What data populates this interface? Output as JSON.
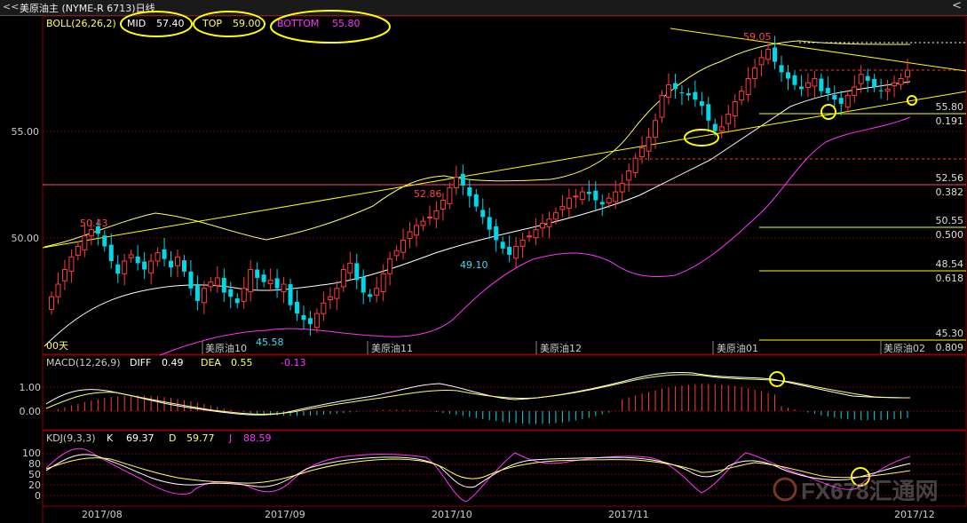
{
  "title": "美原油主 (NYME-R 6713)日线",
  "nav_left": "<<",
  "nav_right": "<",
  "boll": {
    "name": "BOLL(26,26,2)",
    "mid_label": "MID",
    "mid": "57.40",
    "top_label": "TOP",
    "top": "59.00",
    "bottom_label": "BOTTOM",
    "bottom": "55.80"
  },
  "macd": {
    "name": "MACD(12,26,9)",
    "diff_label": "DIFF",
    "diff": "0.49",
    "dea_label": "DEA",
    "dea": "0.55",
    "macd": "-0.13"
  },
  "kdj": {
    "name": "KDJ(9,3,3)",
    "k_label": "K",
    "k": "69.37",
    "d_label": "D",
    "d": "59.77",
    "j_label": "J",
    "j": "88.59"
  },
  "price_axis": [
    "55.00",
    "50.00"
  ],
  "macd_axis": [
    "1.00",
    "0.00"
  ],
  "kdj_axis": [
    "100",
    "80",
    "50",
    "20",
    "0"
  ],
  "fib_levels": [
    {
      "price": "55.80",
      "ratio": "0.191"
    },
    {
      "price": "52.56",
      "ratio": "0.382"
    },
    {
      "price": "50.55",
      "ratio": "0.500"
    },
    {
      "price": "48.54",
      "ratio": "0.618"
    },
    {
      "price": "45.30",
      "ratio": "0.809"
    }
  ],
  "annotations": [
    "50.43",
    "52.86",
    "49.10",
    "45.58",
    "59.05"
  ],
  "period_label": "00天",
  "contract_labels": [
    "美原油10",
    "美原油11",
    "美原油12",
    "美原油01",
    "美原油02"
  ],
  "date_labels": [
    "2017/08",
    "2017/09",
    "2017/10",
    "2017/11",
    "2017/12"
  ],
  "watermark": "FX678汇通网",
  "colors": {
    "up": "#ff3b3b",
    "down": "#00d8e8",
    "mid": "#ffffff",
    "top": "#ffff66",
    "bottom": "#ff33ff",
    "trend": "#ffff00",
    "grid": "#7a0000",
    "highlight": "#ffff00"
  },
  "chart_data": {
    "type": "candlestick",
    "title": "",
    "ylim": [
      44.5,
      60.5
    ],
    "closes": [
      47.2,
      47.8,
      48.5,
      49.1,
      49.6,
      50.1,
      50.4,
      50.2,
      49.6,
      48.9,
      48.3,
      48.9,
      49.2,
      48.8,
      48.5,
      48.9,
      49.3,
      49.0,
      48.6,
      49.1,
      48.4,
      47.6,
      47.0,
      47.6,
      47.9,
      48.1,
      47.4,
      47.2,
      46.9,
      47.6,
      48.5,
      48.1,
      47.9,
      48.0,
      47.6,
      47.8,
      46.8,
      46.4,
      46.1,
      45.9,
      46.4,
      46.9,
      47.2,
      47.6,
      48.5,
      48.8,
      48.0,
      47.4,
      47.2,
      47.6,
      48.3,
      49.0,
      49.4,
      49.9,
      50.3,
      50.6,
      50.8,
      51.0,
      51.3,
      51.8,
      52.4,
      52.9,
      52.5,
      52.0,
      51.5,
      51.0,
      50.4,
      49.9,
      49.5,
      49.2,
      49.6,
      49.9,
      50.1,
      50.4,
      50.7,
      50.9,
      51.2,
      51.5,
      51.9,
      52.0,
      52.2,
      52.1,
      51.8,
      51.6,
      51.9,
      52.2,
      52.6,
      53.2,
      53.8,
      54.3,
      54.8,
      55.6,
      56.8,
      57.3,
      57.1,
      56.9,
      56.8,
      56.6,
      56.3,
      55.6,
      55.1,
      55.3,
      55.9,
      56.5,
      57.0,
      57.6,
      58.1,
      58.6,
      59.0,
      58.4,
      57.9,
      57.6,
      57.3,
      57.1,
      57.4,
      57.6,
      57.0,
      56.9,
      56.6,
      56.4,
      56.8,
      57.2,
      57.8,
      57.5,
      57.2,
      57.0,
      57.1,
      57.4,
      57.6,
      58.0
    ],
    "series": [
      {
        "name": "MID",
        "last": 57.4
      },
      {
        "name": "TOP",
        "last": 59.0
      },
      {
        "name": "BOTTOM",
        "last": 55.8
      }
    ]
  }
}
